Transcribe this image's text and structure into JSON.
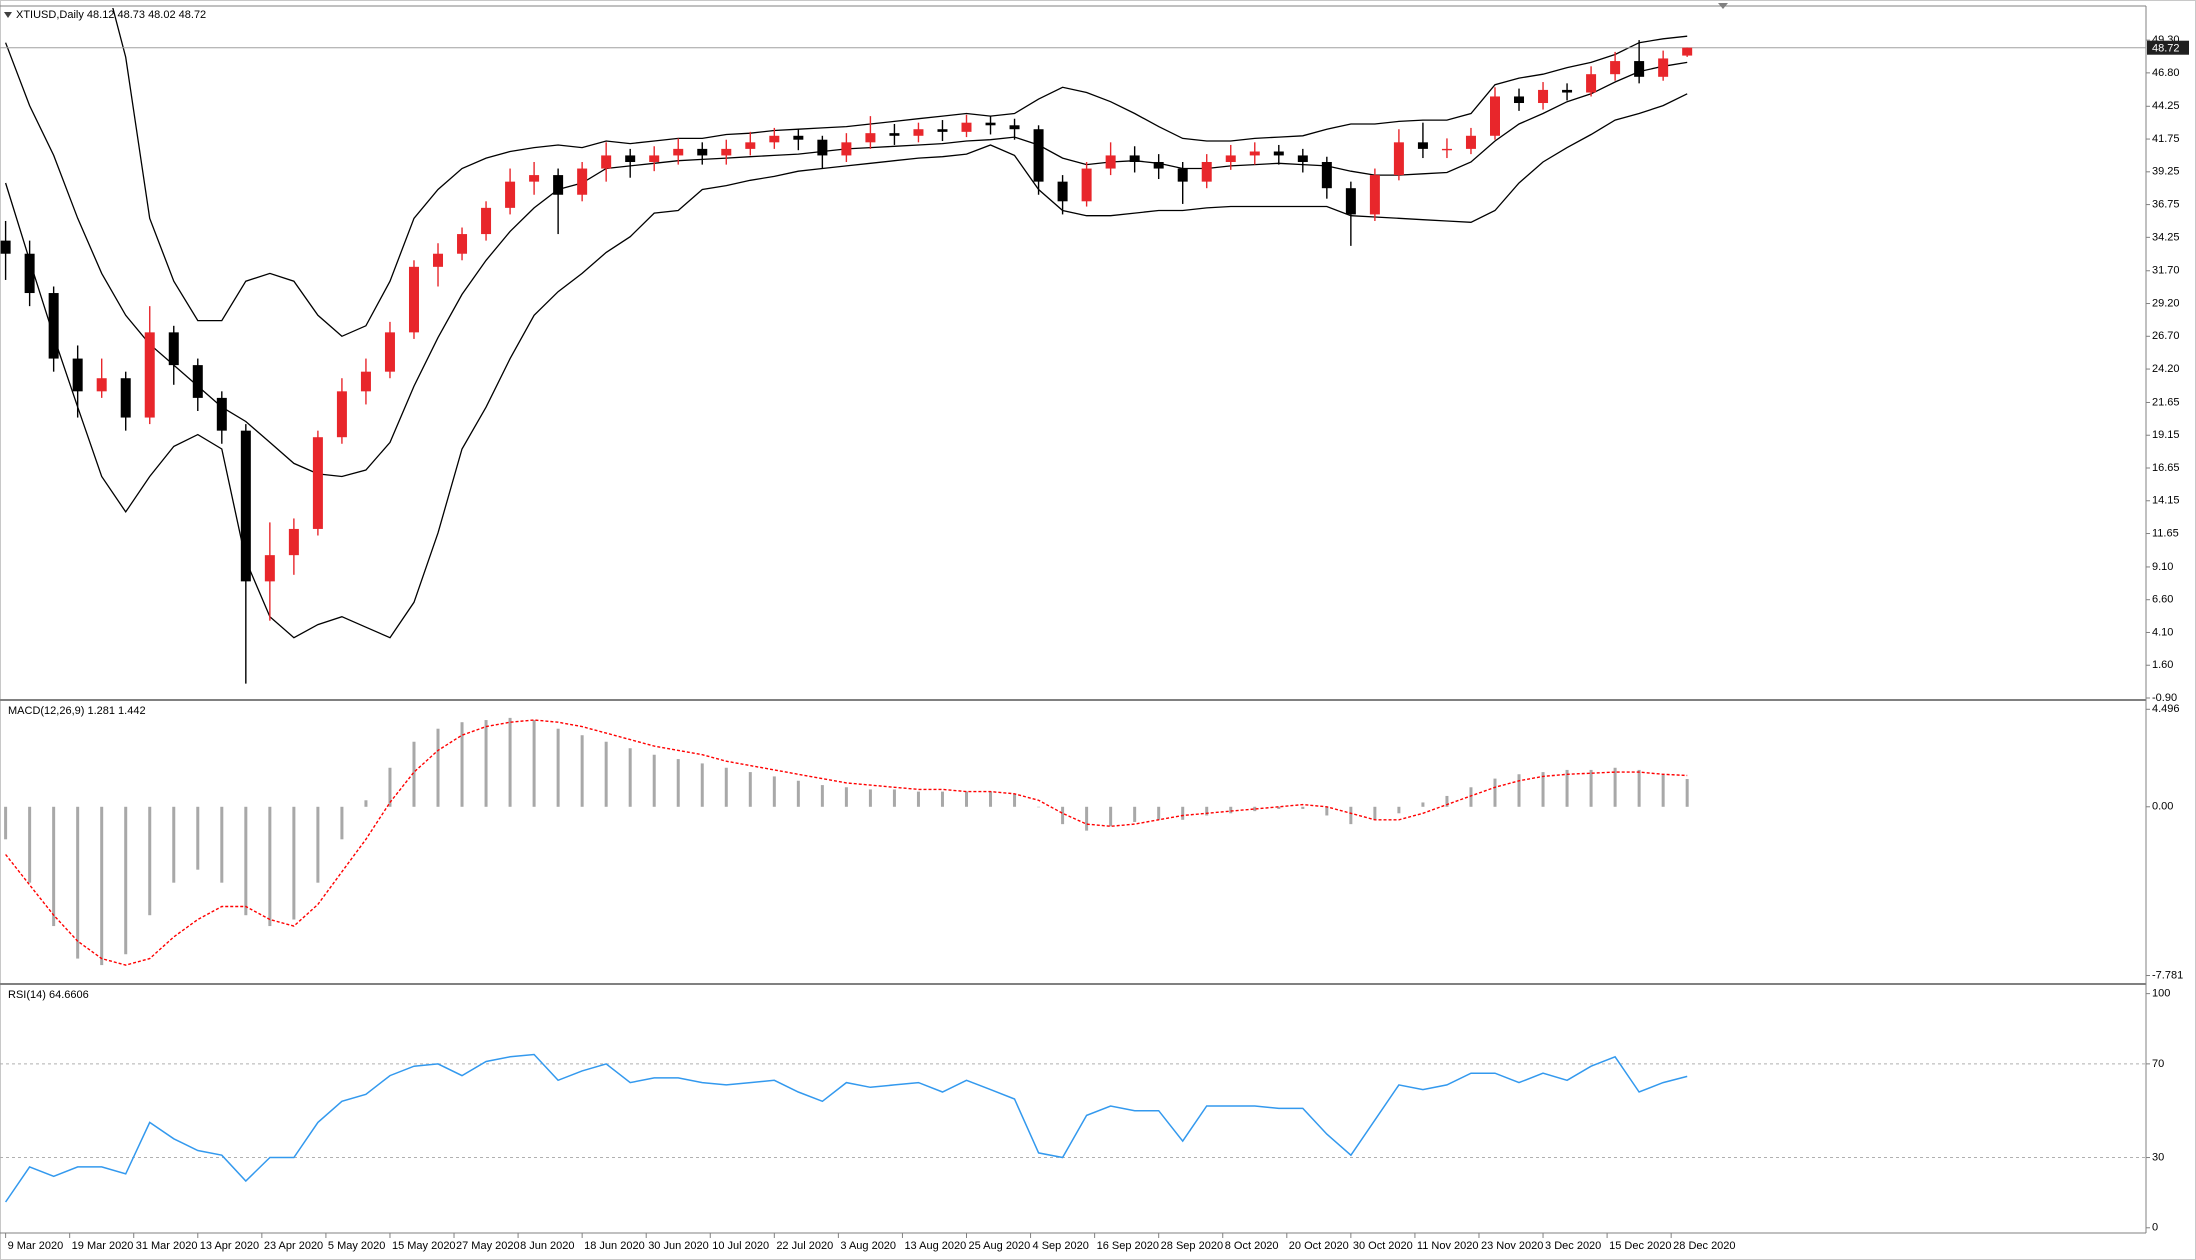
{
  "chart_data": [
    {
      "type": "candlestick",
      "title": "XTIUSD,Daily  48.12 48.73 48.02 48.72",
      "up_color": "#e8262b",
      "down_color": "#000000",
      "band_color": "#000000",
      "xlim": [
        -0.7,
        267.3
      ],
      "x": [
        0,
        3,
        6,
        9,
        12,
        15,
        18,
        21,
        24,
        27,
        30,
        33,
        36,
        39,
        42,
        45,
        48,
        51,
        54,
        57,
        60,
        63,
        66,
        69,
        72,
        75,
        78,
        81,
        84,
        87,
        90,
        93,
        96,
        99,
        102,
        105,
        108,
        111,
        114,
        117,
        120,
        123,
        126,
        129,
        132,
        135,
        138,
        141,
        144,
        147,
        150,
        153,
        156,
        159,
        162,
        165,
        168,
        171,
        174,
        177,
        180,
        183,
        186,
        189,
        192,
        195,
        198,
        201,
        204,
        207,
        210
      ],
      "open": [
        34,
        33,
        30,
        25,
        22.5,
        23.5,
        20.5,
        27,
        24.5,
        22,
        19.5,
        8,
        10,
        12,
        19,
        22.5,
        24,
        27,
        32,
        33,
        34.5,
        36.5,
        38.5,
        39,
        37.5,
        39.5,
        40.5,
        40,
        40.5,
        41,
        40.5,
        41,
        41.5,
        42,
        41.7,
        40.5,
        41.5,
        42.2,
        42,
        42.5,
        42.3,
        43,
        42.8,
        42.5,
        38.5,
        37,
        39.5,
        40.5,
        40,
        39.5,
        38.5,
        40,
        40.5,
        40.8,
        40.5,
        40,
        38,
        36,
        39,
        41.5,
        41,
        41,
        42,
        45,
        44.5,
        45.5,
        45.3,
        46.7,
        47.7,
        46.5,
        48.12
      ],
      "high": [
        35.5,
        34,
        30.5,
        26,
        25,
        24,
        29,
        27.5,
        25,
        22.5,
        20,
        12.5,
        12.8,
        19.5,
        23.5,
        25,
        27.8,
        32.5,
        33.8,
        35,
        37,
        39.5,
        40,
        39.5,
        40,
        41.5,
        41,
        41.2,
        41.8,
        41.5,
        41.7,
        42.3,
        42.6,
        42.5,
        42,
        42.2,
        43.5,
        42.9,
        43,
        43.2,
        43.6,
        43.5,
        43.3,
        42.8,
        39,
        40,
        41.5,
        41.2,
        40.6,
        40,
        40.6,
        41.3,
        41.5,
        41.3,
        41,
        40.4,
        38.5,
        39.5,
        42.5,
        43,
        41.8,
        42.6,
        45.7,
        45.6,
        46.1,
        46,
        47.3,
        48.4,
        49.3,
        48.5,
        48.73
      ],
      "low": [
        31,
        29,
        24,
        20.5,
        22,
        19.5,
        20,
        23,
        21,
        18.5,
        0.2,
        5,
        8.5,
        11.5,
        18.5,
        21.5,
        23.5,
        26.5,
        30.5,
        32.5,
        34,
        36,
        37.5,
        34.5,
        37,
        38.5,
        38.8,
        39.3,
        39.8,
        39.8,
        39.8,
        40.5,
        41,
        40.9,
        39.5,
        40,
        41,
        41.3,
        41.5,
        41.6,
        41.9,
        42.1,
        41.7,
        37.5,
        36,
        36.6,
        39,
        39.2,
        38.7,
        36.8,
        38,
        39.4,
        39.8,
        39.8,
        39.2,
        37.2,
        33.6,
        35.5,
        38.6,
        40.3,
        40.3,
        40.6,
        41.7,
        43.9,
        44,
        44.7,
        45,
        46.2,
        46,
        46.2,
        48.02
      ],
      "close": [
        33,
        30,
        25,
        22.5,
        23.5,
        20.5,
        27,
        24.5,
        22,
        19.5,
        8,
        10,
        12,
        19,
        22.5,
        24,
        27,
        32,
        33,
        34.5,
        36.5,
        38.5,
        39,
        37.5,
        39.5,
        40.5,
        40,
        40.5,
        41,
        40.5,
        41,
        41.5,
        42,
        41.7,
        40.5,
        41.5,
        42.2,
        42,
        42.5,
        42.3,
        43,
        42.8,
        42.5,
        38.5,
        37,
        39.5,
        40.5,
        40,
        39.5,
        38.5,
        40,
        40.5,
        40.8,
        40.5,
        40,
        38,
        36,
        39,
        41.5,
        41,
        41,
        42,
        45,
        44.5,
        45.5,
        45.3,
        46.7,
        47.7,
        46.5,
        47.9,
        48.72
      ],
      "bands": {
        "upper": [
          null,
          null,
          null,
          null,
          55,
          48,
          35.7,
          30.9,
          27.9,
          27.9,
          30.9,
          31.5,
          30.9,
          28.3,
          26.7,
          27.5,
          30.9,
          35.7,
          37.9,
          39.5,
          40.3,
          40.8,
          41.1,
          41.3,
          41.1,
          41.6,
          41.4,
          41.6,
          41.8,
          41.8,
          42.1,
          42.2,
          42.4,
          42.5,
          42.6,
          42.7,
          42.9,
          43.1,
          43.3,
          43.5,
          43.7,
          43.5,
          43.7,
          44.8,
          45.7,
          45.3,
          44.6,
          43.7,
          42.7,
          41.8,
          41.6,
          41.6,
          41.8,
          41.9,
          42.0,
          42.5,
          42.9,
          42.9,
          43.1,
          43.2,
          43.2,
          43.7,
          45.9,
          46.4,
          46.7,
          47.2,
          47.6,
          48.2,
          49.1,
          49.4,
          49.6
        ],
        "middle": [
          49.1,
          44.3,
          40.5,
          35.7,
          31.5,
          28.3,
          26.1,
          24.5,
          22.9,
          21.3,
          20.2,
          18.6,
          17.0,
          16.2,
          16.0,
          16.5,
          18.6,
          22.9,
          26.6,
          29.9,
          32.5,
          34.7,
          36.5,
          37.9,
          38.4,
          39.5,
          39.7,
          39.9,
          40.1,
          40.2,
          40.3,
          40.4,
          40.5,
          40.6,
          40.8,
          41.0,
          41.1,
          41.2,
          41.3,
          41.4,
          41.6,
          41.7,
          41.9,
          41.3,
          40.3,
          39.8,
          40.0,
          40.1,
          39.9,
          39.5,
          39.5,
          39.7,
          39.8,
          39.9,
          39.8,
          39.7,
          39.3,
          39.0,
          39.0,
          39.1,
          39.2,
          40.0,
          41.6,
          42.9,
          43.7,
          44.6,
          45.2,
          46.1,
          46.9,
          47.3,
          47.6
        ],
        "lower": [
          38.4,
          32.5,
          26.7,
          21.3,
          16.0,
          13.3,
          16.0,
          18.3,
          19.2,
          18.1,
          9.6,
          5.3,
          3.7,
          4.7,
          5.3,
          4.5,
          3.7,
          6.4,
          11.7,
          18.1,
          21.3,
          25.0,
          28.3,
          30.1,
          31.5,
          33.1,
          34.3,
          36.1,
          36.3,
          37.9,
          38.2,
          38.6,
          38.9,
          39.3,
          39.5,
          39.7,
          39.9,
          40.1,
          40.3,
          40.4,
          40.6,
          41.3,
          40.5,
          37.9,
          36.3,
          35.9,
          35.9,
          36.1,
          36.3,
          36.3,
          36.5,
          36.6,
          36.6,
          36.6,
          36.6,
          36.6,
          35.9,
          35.8,
          35.7,
          35.6,
          35.5,
          35.4,
          36.3,
          38.4,
          40.0,
          41.1,
          42.1,
          43.2,
          43.7,
          44.3,
          45.2
        ]
      },
      "last_price": {
        "value": 48.72,
        "label": "48.72"
      },
      "ylim": [
        -0.9,
        51.75
      ],
      "yticks": [
        {
          "value": 49.3,
          "label": "49.30"
        },
        {
          "value": 46.8,
          "label": "46.80"
        },
        {
          "value": 44.25,
          "label": "44.25"
        },
        {
          "value": 41.75,
          "label": "41.75"
        },
        {
          "value": 39.25,
          "label": "39.25"
        },
        {
          "value": 36.75,
          "label": "36.75"
        },
        {
          "value": 34.25,
          "label": "34.25"
        },
        {
          "value": 31.7,
          "label": "31.70"
        },
        {
          "value": 29.2,
          "label": "29.20"
        },
        {
          "value": 26.7,
          "label": "26.70"
        },
        {
          "value": 24.2,
          "label": "24.20"
        },
        {
          "value": 21.65,
          "label": "21.65"
        },
        {
          "value": 19.15,
          "label": "19.15"
        },
        {
          "value": 16.65,
          "label": "16.65"
        },
        {
          "value": 14.15,
          "label": "14.15"
        },
        {
          "value": 11.65,
          "label": "11.65"
        },
        {
          "value": 9.1,
          "label": "9.10"
        },
        {
          "value": 6.6,
          "label": "6.60"
        },
        {
          "value": 4.1,
          "label": "4.10"
        },
        {
          "value": 1.6,
          "label": "1.60"
        },
        {
          "value": -0.9,
          "label": "-0.90"
        }
      ]
    },
    {
      "type": "macd",
      "title": "MACD(12,26,9) 1.281 1.442",
      "hist_color": "#a8a8a8",
      "signal_color": "#ff0000",
      "histogram": [
        -1.5,
        -3.5,
        -5.5,
        -7.0,
        -7.3,
        -6.8,
        -5.0,
        -3.5,
        -2.9,
        -3.5,
        -5.0,
        -5.5,
        -5.2,
        -3.5,
        -1.5,
        0.3,
        1.8,
        3.0,
        3.6,
        3.9,
        4.0,
        4.1,
        4.0,
        3.6,
        3.3,
        3.0,
        2.7,
        2.4,
        2.2,
        2.0,
        1.8,
        1.6,
        1.4,
        1.2,
        1.0,
        0.9,
        0.8,
        0.8,
        0.7,
        0.7,
        0.7,
        0.7,
        0.6,
        0.0,
        -0.8,
        -1.1,
        -0.9,
        -0.7,
        -0.6,
        -0.6,
        -0.4,
        -0.3,
        -0.2,
        -0.1,
        -0.1,
        -0.4,
        -0.8,
        -0.6,
        -0.3,
        0.2,
        0.5,
        0.9,
        1.3,
        1.5,
        1.6,
        1.7,
        1.7,
        1.8,
        1.7,
        1.5,
        1.281
      ],
      "signal": [
        -2.2,
        -3.6,
        -5.0,
        -6.2,
        -7.0,
        -7.3,
        -7.0,
        -6.0,
        -5.2,
        -4.6,
        -4.6,
        -5.2,
        -5.5,
        -4.5,
        -3.0,
        -1.5,
        0.2,
        1.6,
        2.6,
        3.3,
        3.7,
        3.9,
        4.0,
        3.9,
        3.7,
        3.4,
        3.1,
        2.8,
        2.6,
        2.4,
        2.1,
        1.9,
        1.7,
        1.5,
        1.3,
        1.1,
        1.0,
        0.9,
        0.8,
        0.8,
        0.7,
        0.7,
        0.6,
        0.3,
        -0.3,
        -0.8,
        -0.9,
        -0.8,
        -0.6,
        -0.4,
        -0.3,
        -0.2,
        -0.1,
        0.0,
        0.1,
        0.0,
        -0.3,
        -0.6,
        -0.6,
        -0.3,
        0.1,
        0.5,
        0.9,
        1.2,
        1.4,
        1.5,
        1.55,
        1.6,
        1.6,
        1.5,
        1.442
      ],
      "ylim": [
        -8.08,
        4.74
      ],
      "yticks": [
        4.496,
        {
          "value": 0,
          "label": "0.00"
        },
        -7.781
      ]
    },
    {
      "type": "line",
      "title": "RSI(14) 64.6606",
      "color": "#3399ee",
      "levels": [
        30,
        70
      ],
      "values": [
        11,
        26,
        22,
        26,
        26,
        23,
        45,
        38,
        33,
        31,
        20,
        30,
        30,
        45,
        54,
        57,
        65,
        69,
        70,
        65,
        71,
        73,
        74,
        63,
        67,
        70,
        62,
        64,
        64,
        62,
        61,
        62,
        63,
        58,
        54,
        62,
        60,
        61,
        62,
        58,
        63,
        59,
        55,
        32,
        30,
        48,
        52,
        50,
        50,
        37,
        52,
        52,
        52,
        51,
        51,
        40,
        31,
        46,
        61,
        59,
        61,
        66,
        66,
        62,
        66,
        63,
        69,
        73,
        58,
        62,
        64.6606
      ],
      "ylim": [
        -1.8,
        102.4
      ],
      "yticks": [
        100,
        70,
        30,
        0
      ],
      "xticks": [
        {
          "value": 0,
          "label": "9 Mar 2020"
        },
        {
          "value": 8,
          "label": "19 Mar 2020"
        },
        {
          "value": 16,
          "label": "31 Mar 2020"
        },
        {
          "value": 24,
          "label": "13 Apr 2020"
        },
        {
          "value": 32,
          "label": "23 Apr 2020"
        },
        {
          "value": 40,
          "label": "5 May 2020"
        },
        {
          "value": 48,
          "label": "15 May 2020"
        },
        {
          "value": 56,
          "label": "27 May 2020"
        },
        {
          "value": 64,
          "label": "8 Jun 2020"
        },
        {
          "value": 72,
          "label": "18 Jun 2020"
        },
        {
          "value": 80,
          "label": "30 Jun 2020"
        },
        {
          "value": 88,
          "label": "10 Jul 2020"
        },
        {
          "value": 96,
          "label": "22 Jul 2020"
        },
        {
          "value": 104,
          "label": "3 Aug 2020"
        },
        {
          "value": 112,
          "label": "13 Aug 2020"
        },
        {
          "value": 120,
          "label": "25 Aug 2020"
        },
        {
          "value": 128,
          "label": "4 Sep 2020"
        },
        {
          "value": 136,
          "label": "16 Sep 2020"
        },
        {
          "value": 144,
          "label": "28 Sep 2020"
        },
        {
          "value": 152,
          "label": "8 Oct 2020"
        },
        {
          "value": 160,
          "label": "20 Oct 2020"
        },
        {
          "value": 168,
          "label": "30 Oct 2020"
        },
        {
          "value": 176,
          "label": "11 Nov 2020"
        },
        {
          "value": 184,
          "label": "23 Nov 2020"
        },
        {
          "value": 192,
          "label": "3 Dec 2020"
        },
        {
          "value": 200,
          "label": "15 Dec 2020"
        },
        {
          "value": 208,
          "label": "28 Dec 2020"
        }
      ]
    }
  ]
}
